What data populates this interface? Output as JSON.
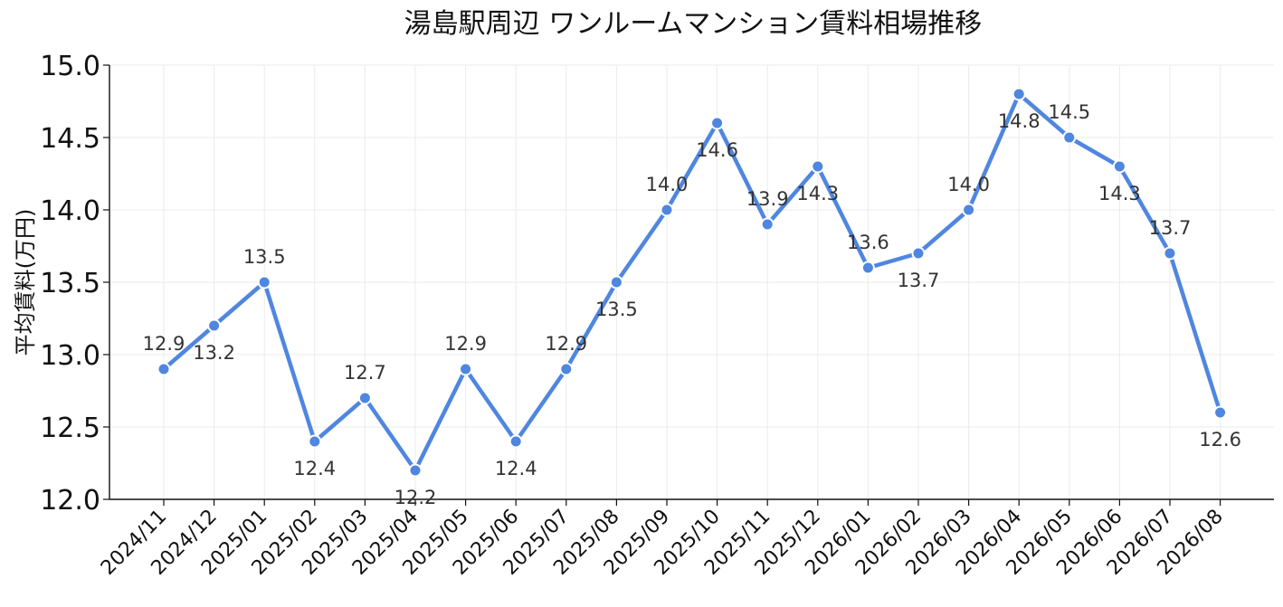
{
  "chart_data": {
    "type": "line",
    "title": "湯島駅周辺 ワンルームマンション賃料相場推移",
    "xlabel": "",
    "ylabel": "平均賃料(万円)",
    "ylim": [
      12.0,
      15.0
    ],
    "yticks": [
      "12.0",
      "12.5",
      "13.0",
      "13.5",
      "14.0",
      "14.5",
      "15.0"
    ],
    "grid": true,
    "color": "#4f86e0",
    "categories": [
      "2024/11",
      "2024/12",
      "2025/01",
      "2025/02",
      "2025/03",
      "2025/04",
      "2025/05",
      "2025/06",
      "2025/07",
      "2025/08",
      "2025/09",
      "2025/10",
      "2025/11",
      "2025/12",
      "2026/01",
      "2026/02",
      "2026/03",
      "2026/04",
      "2026/05",
      "2026/06",
      "2026/07",
      "2026/08"
    ],
    "values": [
      12.9,
      13.2,
      13.5,
      12.4,
      12.7,
      12.2,
      12.9,
      12.4,
      12.9,
      13.5,
      14.0,
      14.6,
      13.9,
      14.3,
      13.6,
      13.7,
      14.0,
      14.8,
      14.5,
      14.3,
      13.7,
      12.6
    ],
    "data_labels": [
      "12.9",
      "13.2",
      "13.5",
      "12.4",
      "12.7",
      "12.2",
      "12.9",
      "12.4",
      "12.9",
      "13.5",
      "14.0",
      "14.6",
      "13.9",
      "14.3",
      "13.6",
      "13.7",
      "14.0",
      "14.8",
      "14.5",
      "14.3",
      "13.7",
      "12.6"
    ],
    "label_positions": [
      "above",
      "below",
      "above",
      "below",
      "above",
      "below",
      "above",
      "below",
      "above",
      "below",
      "above",
      "below",
      "above",
      "below",
      "above",
      "below",
      "above",
      "below",
      "above",
      "below",
      "above",
      "below"
    ]
  }
}
